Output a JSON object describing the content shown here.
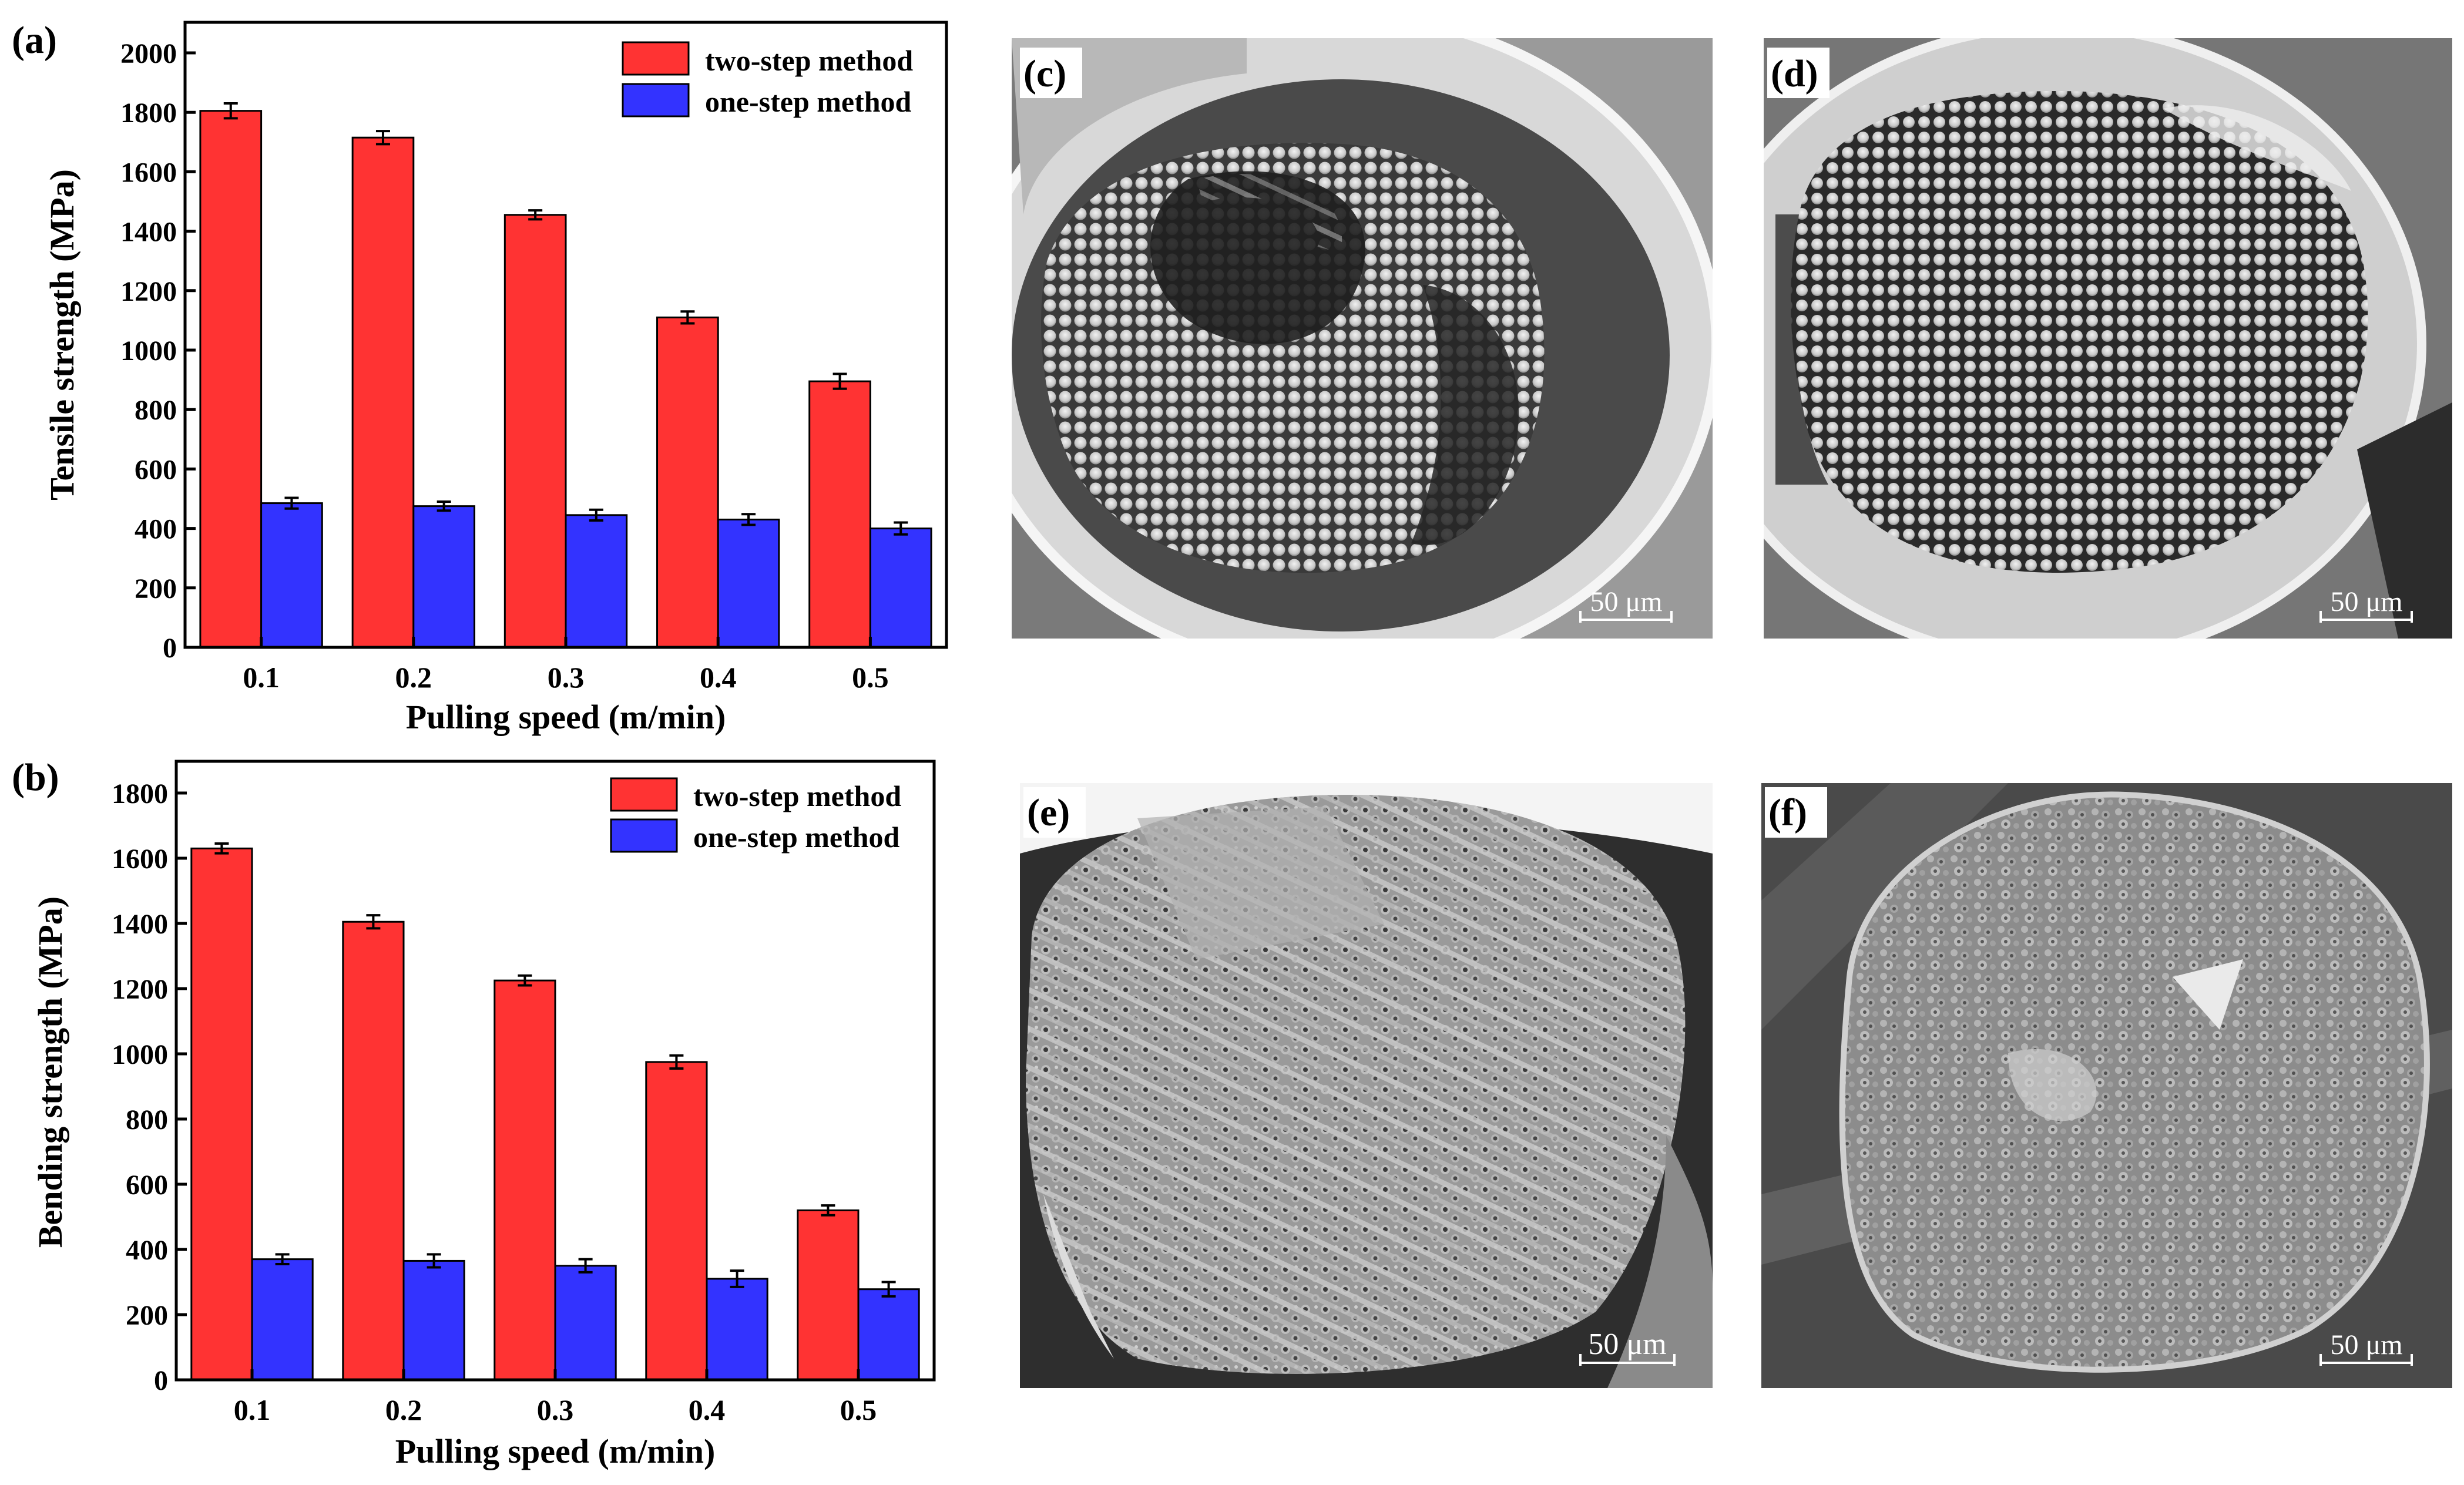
{
  "chart_data": [
    {
      "panel": "(a)",
      "type": "bar",
      "categories": [
        "0.1",
        "0.2",
        "0.3",
        "0.4",
        "0.5"
      ],
      "series": [
        {
          "name": "two-step method",
          "color": "#ff3333",
          "values": [
            1805,
            1715,
            1455,
            1110,
            895
          ],
          "errors": [
            25,
            22,
            15,
            20,
            25
          ]
        },
        {
          "name": "one-step method",
          "color": "#3333ff",
          "values": [
            485,
            475,
            445,
            430,
            400
          ],
          "errors": [
            18,
            15,
            18,
            18,
            20
          ]
        }
      ],
      "xlabel": "Pulling speed (m/min)",
      "ylabel": "Tensile strength (MPa)",
      "ylim": [
        0,
        2000
      ],
      "yticks": [
        "0",
        "200",
        "400",
        "600",
        "800",
        "1000",
        "1200",
        "1400",
        "1600",
        "1800",
        "2000"
      ],
      "legend_position": "top-right",
      "grid": false
    },
    {
      "panel": "(b)",
      "type": "bar",
      "categories": [
        "0.1",
        "0.2",
        "0.3",
        "0.4",
        "0.5"
      ],
      "series": [
        {
          "name": "two-step method",
          "color": "#ff3333",
          "values": [
            1630,
            1405,
            1225,
            975,
            520
          ],
          "errors": [
            15,
            20,
            15,
            20,
            15
          ]
        },
        {
          "name": "one-step method",
          "color": "#3333ff",
          "values": [
            370,
            365,
            350,
            310,
            278
          ],
          "errors": [
            15,
            20,
            20,
            25,
            22
          ]
        }
      ],
      "xlabel": "Pulling speed (m/min)",
      "ylabel": "Bending strength (MPa)",
      "ylim": [
        0,
        1800
      ],
      "yticks": [
        "0",
        "200",
        "400",
        "600",
        "800",
        "1000",
        "1200",
        "1400",
        "1600",
        "1800"
      ],
      "legend_position": "top-right",
      "grid": false
    }
  ],
  "sem_images": [
    {
      "label": "(c)",
      "scale_bar": "50 μm"
    },
    {
      "label": "(d)",
      "scale_bar": "50 μm"
    },
    {
      "label": "(e)",
      "scale_bar": "50 μm"
    },
    {
      "label": "(f)",
      "scale_bar": "50 μm"
    }
  ]
}
